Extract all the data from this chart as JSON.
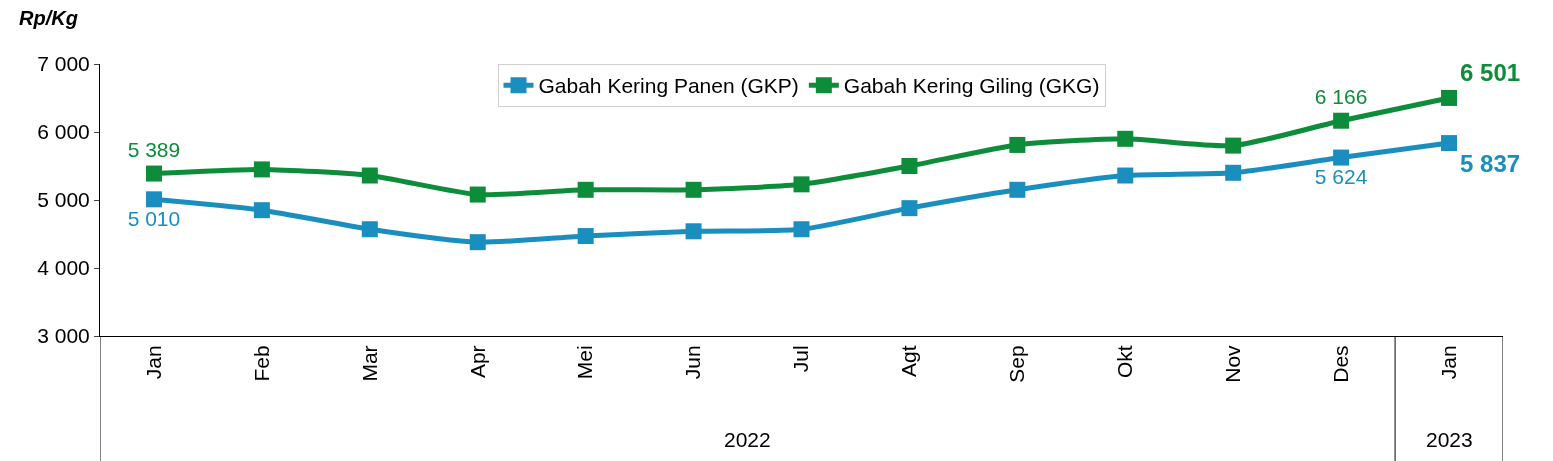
{
  "chart_data": {
    "type": "line",
    "ylabel": "Rp/Kg",
    "categories": [
      "Jan",
      "Feb",
      "Mar",
      "Apr",
      "Mei",
      "Jun",
      "Jul",
      "Agt",
      "Sep",
      "Okt",
      "Nov",
      "Des",
      "Jan"
    ],
    "series": [
      {
        "name": "Gabah Kering Panen (GKP)",
        "color": "#1a8fbf",
        "values": [
          5010,
          4850,
          4570,
          4380,
          4470,
          4540,
          4570,
          4880,
          5150,
          5360,
          5400,
          5624,
          5837
        ],
        "value_labels": [
          "5 010",
          null,
          null,
          null,
          null,
          null,
          null,
          null,
          null,
          null,
          null,
          "5 624",
          "5 837"
        ]
      },
      {
        "name": "Gabah Kering Giling (GKG)",
        "color": "#0d8c3a",
        "values": [
          5389,
          5450,
          5360,
          5080,
          5150,
          5150,
          5230,
          5500,
          5810,
          5900,
          5800,
          6166,
          6501
        ],
        "value_labels": [
          "5 389",
          null,
          null,
          null,
          null,
          null,
          null,
          null,
          null,
          null,
          null,
          "6 166",
          "6 501"
        ]
      }
    ],
    "ylim": [
      3000,
      7000
    ],
    "yticks": [
      {
        "value": 3000,
        "label": "3 000"
      },
      {
        "value": 4000,
        "label": "4 000"
      },
      {
        "value": 5000,
        "label": "5 000"
      },
      {
        "value": 6000,
        "label": "6 000"
      },
      {
        "value": 7000,
        "label": "7 000"
      }
    ],
    "annotations": [
      "2022",
      "2023"
    ],
    "legend": "top",
    "marker": "square",
    "line_style": "solid"
  }
}
